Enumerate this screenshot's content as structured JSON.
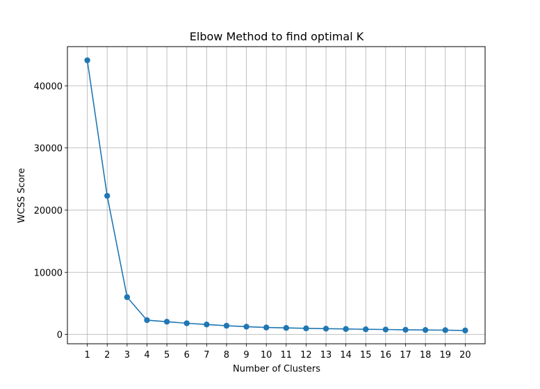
{
  "chart_data": {
    "type": "line",
    "title": "Elbow Method to find optimal K",
    "xlabel": "Number of Clusters",
    "ylabel": "WCSS Score",
    "x": [
      1,
      2,
      3,
      4,
      5,
      6,
      7,
      8,
      9,
      10,
      11,
      12,
      13,
      14,
      15,
      16,
      17,
      18,
      19,
      20
    ],
    "series": [
      {
        "values": [
          44100,
          22300,
          6000,
          2300,
          2050,
          1800,
          1600,
          1400,
          1250,
          1120,
          1050,
          980,
          930,
          880,
          830,
          790,
          750,
          720,
          690,
          640
        ]
      }
    ],
    "xticks": [
      "1",
      "2",
      "3",
      "4",
      "5",
      "6",
      "7",
      "8",
      "9",
      "10",
      "11",
      "12",
      "13",
      "14",
      "15",
      "16",
      "17",
      "18",
      "19",
      "20"
    ],
    "yticks": [
      0,
      10000,
      20000,
      30000,
      40000
    ],
    "ytick_labels": [
      "0",
      "10000",
      "20000",
      "30000",
      "40000"
    ],
    "xlim": [
      0.0,
      21.0
    ],
    "ylim": [
      -1500,
      46300
    ],
    "grid": true,
    "legend": "none",
    "colors": {
      "line": "#1f77b4",
      "grid": "#b0b0b0"
    }
  }
}
